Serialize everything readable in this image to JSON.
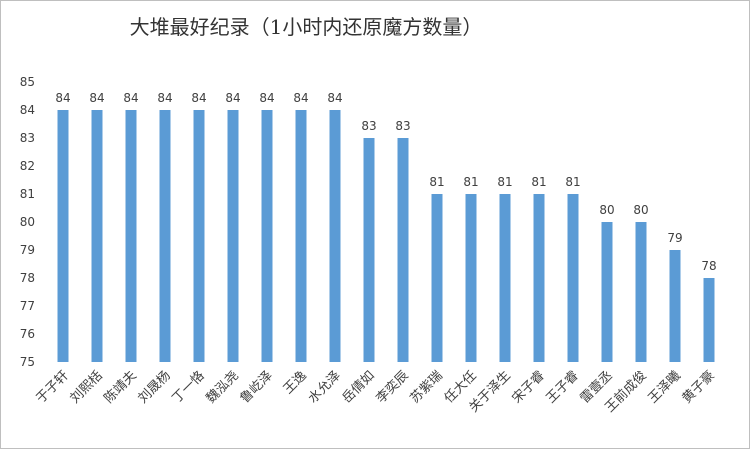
{
  "chart_data": {
    "type": "bar",
    "title": "大堆最好纪录（1小时内还原魔方数量）",
    "xlabel": "",
    "ylabel": "",
    "ylim": [
      75,
      85
    ],
    "yticks": [
      75,
      76,
      77,
      78,
      79,
      80,
      81,
      82,
      83,
      84,
      85
    ],
    "grid": false,
    "legend": "none",
    "bar_color": "#5b9bd5",
    "categories": [
      "于子轩",
      "刘熙栝",
      "陈靖夫",
      "刘晟杨",
      "丁一恪",
      "魏泓尧",
      "鲁屹泽",
      "王逸",
      "水允泽",
      "岳倩如",
      "李奕辰",
      "苏紫瑞",
      "任大任",
      "关于泽生",
      "宋子睿",
      "王子睿",
      "雷壹丞",
      "王前成俊",
      "王泽曦",
      "黄子豪"
    ],
    "values": [
      84,
      84,
      84,
      84,
      84,
      84,
      84,
      84,
      84,
      83,
      83,
      81,
      81,
      81,
      81,
      81,
      80,
      80,
      79,
      78
    ]
  }
}
